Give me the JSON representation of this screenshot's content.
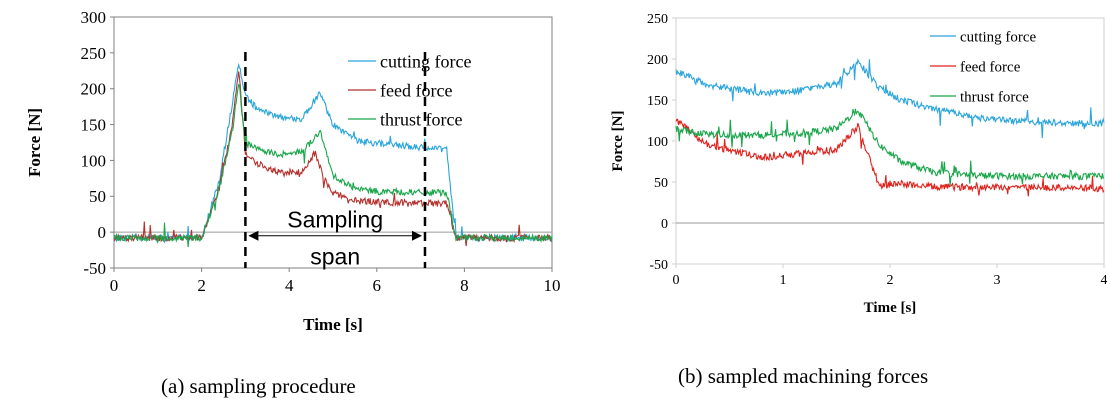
{
  "chart_data": [
    {
      "type": "line",
      "panel": "a",
      "caption": "(a) sampling procedure",
      "xlabel": "Time [s]",
      "ylabel": "Force [N]",
      "xlim": [
        0,
        10
      ],
      "ylim": [
        -50,
        300
      ],
      "xticks": [
        "0",
        "2",
        "4",
        "6",
        "8",
        "10"
      ],
      "yticks": [
        "-50",
        "0",
        "50",
        "100",
        "150",
        "200",
        "250",
        "300"
      ],
      "grid": false,
      "legend_position": "top-right",
      "series": [
        {
          "name": "cutting force",
          "color": "#2aa5dc",
          "x": [
            0,
            2.0,
            2.4,
            2.7,
            2.85,
            3.0,
            3.3,
            3.8,
            4.3,
            4.7,
            5.0,
            5.5,
            6.0,
            7.0,
            7.6,
            7.8,
            8.5,
            10
          ],
          "y": [
            -8,
            -8,
            70,
            180,
            235,
            190,
            170,
            160,
            158,
            195,
            150,
            128,
            124,
            118,
            115,
            -8,
            -8,
            -8
          ]
        },
        {
          "name": "feed force",
          "color": "#b5312d",
          "x": [
            0,
            2.0,
            2.4,
            2.7,
            2.85,
            3.0,
            3.3,
            3.8,
            4.3,
            4.6,
            4.8,
            5.0,
            5.5,
            6.0,
            7.0,
            7.6,
            7.8,
            8.5,
            10
          ],
          "y": [
            -8,
            -8,
            60,
            150,
            228,
            110,
            95,
            82,
            85,
            110,
            75,
            55,
            45,
            42,
            40,
            40,
            -8,
            -8,
            -8
          ]
        },
        {
          "name": "thrust force",
          "color": "#1aa64a",
          "x": [
            0,
            2.0,
            2.4,
            2.7,
            2.85,
            3.0,
            3.3,
            3.8,
            4.3,
            4.7,
            5.0,
            5.5,
            6.0,
            7.0,
            7.6,
            7.8,
            8.5,
            10
          ],
          "y": [
            -8,
            -8,
            60,
            140,
            210,
            125,
            115,
            108,
            112,
            140,
            80,
            60,
            57,
            55,
            55,
            -8,
            -8,
            -8
          ]
        }
      ],
      "vlines_x": [
        3.0,
        7.1
      ],
      "annotation": {
        "line1": "Sampling",
        "line2": "span",
        "x_from": 3.0,
        "x_to": 7.1,
        "y": -5
      }
    },
    {
      "type": "line",
      "panel": "b",
      "caption": "(b) sampled machining forces",
      "xlabel": "Time [s]",
      "ylabel": "Force [N]",
      "xlim": [
        0,
        4
      ],
      "ylim": [
        -50,
        250
      ],
      "xticks": [
        "0",
        "1",
        "2",
        "3",
        "4"
      ],
      "yticks": [
        "-50",
        "0",
        "50",
        "100",
        "150",
        "200",
        "250"
      ],
      "grid": false,
      "legend_position": "top-right",
      "series": [
        {
          "name": "cutting force",
          "color": "#2aa5dc",
          "x": [
            0,
            0.3,
            0.8,
            1.2,
            1.5,
            1.7,
            1.9,
            2.1,
            2.4,
            2.8,
            3.2,
            4.0
          ],
          "y": [
            185,
            168,
            158,
            162,
            170,
            197,
            165,
            150,
            140,
            128,
            124,
            121
          ]
        },
        {
          "name": "feed force",
          "color": "#e0221c",
          "x": [
            0,
            0.3,
            0.8,
            1.2,
            1.5,
            1.7,
            1.9,
            2.1,
            2.4,
            2.8,
            3.2,
            4.0
          ],
          "y": [
            125,
            95,
            80,
            85,
            90,
            118,
            45,
            48,
            44,
            44,
            44,
            42
          ]
        },
        {
          "name": "thrust force",
          "color": "#1aa64a",
          "x": [
            0,
            0.3,
            0.8,
            1.2,
            1.5,
            1.7,
            1.9,
            2.1,
            2.4,
            2.8,
            3.2,
            4.0
          ],
          "y": [
            115,
            108,
            107,
            110,
            115,
            138,
            95,
            75,
            62,
            58,
            57,
            57
          ]
        }
      ]
    }
  ]
}
